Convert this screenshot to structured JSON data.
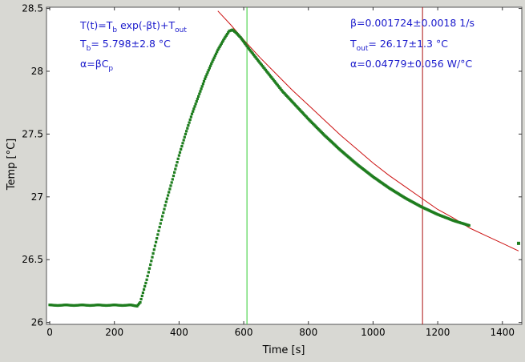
{
  "colors": {
    "background": "#d8d8d3",
    "plot_background": "#ffffff",
    "data": "#1e7d1e",
    "fit": "#cc1111",
    "cursor_start": "#33cc33",
    "cursor_end": "#aa1111",
    "annotation": "#1a1acc"
  },
  "annotations": {
    "model": {
      "a": "T(t)=T",
      "b": "b",
      "c": " exp(-βt)+T",
      "d": "out"
    },
    "tb": {
      "a": "T",
      "b": "b",
      "c": "= 5.798±2.8 °C"
    },
    "alpha_def": {
      "a": "α=βC",
      "b": "p"
    },
    "beta": "β=0.001724±0.0018 1/s",
    "tout": {
      "a": "T",
      "b": "out",
      "c": "= 26.17±1.3 °C"
    },
    "alpha_val": "α=0.04779±0.056 W/°C"
  },
  "chart_data": {
    "type": "scatter",
    "xlabel": "Time [s]",
    "ylabel": "Temp [°C]",
    "xlim": [
      -10,
      1460
    ],
    "ylim": [
      25.985,
      28.51
    ],
    "xticks": [
      0,
      200,
      400,
      600,
      800,
      1000,
      1200,
      1400
    ],
    "xtick_labels": [
      "0",
      "200",
      "400",
      "600",
      "800",
      "1000",
      "1200",
      "1400"
    ],
    "yticks": [
      26,
      26.5,
      27,
      27.5,
      28,
      28.5
    ],
    "ytick_labels": [
      "26",
      "26.5",
      "27",
      "27.5",
      "28",
      "28.5"
    ],
    "grid": false,
    "cursors": [
      610,
      1153
    ],
    "series": [
      {
        "style": "points",
        "x": [
          0,
          25,
          50,
          75,
          100,
          125,
          150,
          175,
          200,
          225,
          250,
          270,
          280,
          300,
          320,
          340,
          360,
          380,
          400,
          420,
          440,
          460,
          480,
          500,
          520,
          540,
          555,
          565,
          575,
          590,
          610,
          640,
          680,
          720,
          760,
          800,
          850,
          900,
          950,
          1000,
          1050,
          1100,
          1150,
          1200,
          1250,
          1300
        ],
        "y": [
          26.14,
          26.135,
          26.14,
          26.135,
          26.14,
          26.135,
          26.14,
          26.135,
          26.14,
          26.135,
          26.14,
          26.13,
          26.16,
          26.34,
          26.55,
          26.76,
          26.96,
          27.14,
          27.33,
          27.5,
          27.66,
          27.8,
          27.94,
          28.06,
          28.17,
          28.26,
          28.32,
          28.33,
          28.31,
          28.27,
          28.2,
          28.1,
          27.97,
          27.84,
          27.73,
          27.62,
          27.49,
          27.37,
          27.26,
          27.16,
          27.07,
          26.99,
          26.92,
          26.86,
          26.81,
          26.77
        ]
      },
      {
        "style": "points",
        "x": [
          1450
        ],
        "y": [
          26.63
        ]
      },
      {
        "style": "fit-line",
        "x": [
          520,
          560,
          600,
          650,
          700,
          750,
          800,
          850,
          900,
          950,
          1000,
          1050,
          1100,
          1150,
          1200,
          1250,
          1300,
          1350,
          1400,
          1450
        ],
        "y": [
          28.48,
          28.37,
          28.25,
          28.11,
          27.98,
          27.85,
          27.73,
          27.61,
          27.49,
          27.38,
          27.27,
          27.17,
          27.08,
          26.99,
          26.9,
          26.83,
          26.75,
          26.69,
          26.63,
          26.57
        ]
      }
    ]
  }
}
